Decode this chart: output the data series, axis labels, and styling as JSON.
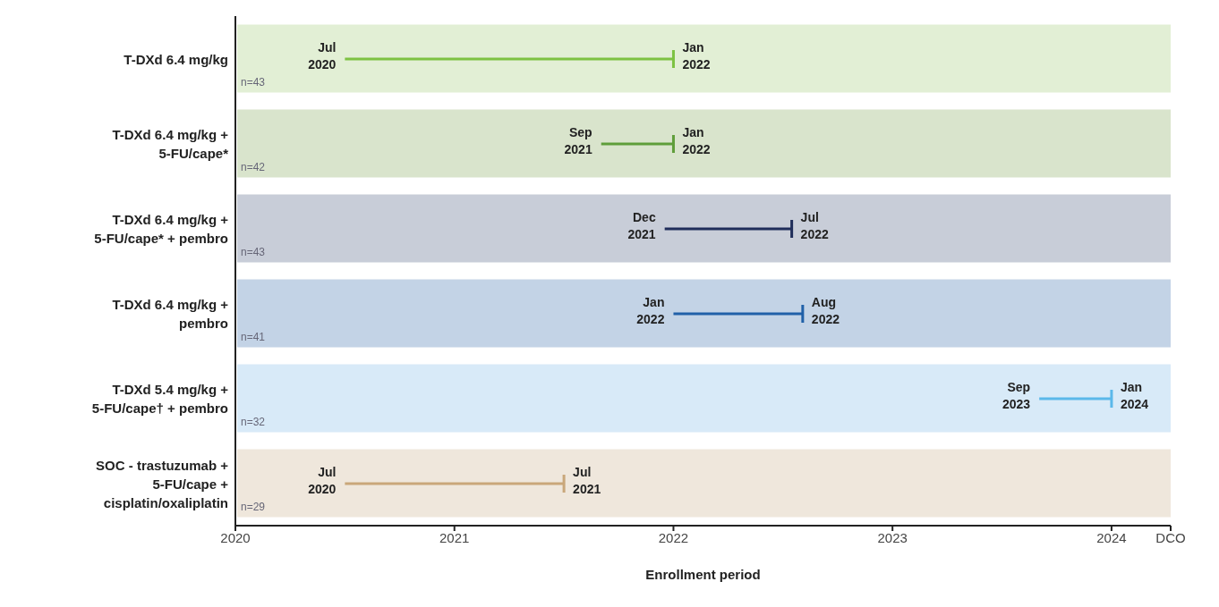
{
  "chart_data": {
    "type": "bar",
    "orientation": "horizontal",
    "xlabel": "Enrollment period",
    "categories": [
      "T-DXd 6.4 mg/kg",
      "T-DXd 6.4 mg/kg + 5-FU/cape*",
      "T-DXd 6.4 mg/kg + 5-FU/cape* + pembro",
      "T-DXd 6.4 mg/kg + pembro",
      "T-DXd 5.4 mg/kg + 5-FU/cape† + pembro",
      "SOC - trastuzumab + 5-FU/cape + cisplatin/oxaliplatin"
    ],
    "base": [
      2020.5,
      2021.67,
      2021.96,
      2022.0,
      2023.67,
      2020.5
    ],
    "values": [
      1.5,
      0.33,
      0.58,
      0.59,
      0.33,
      1.0
    ],
    "colors": [
      "#7dc242",
      "#5f9e3a",
      "#1f2d5a",
      "#2060a8",
      "#5bb8ea",
      "#c9a77a"
    ],
    "xlim": [
      2020,
      2024.27
    ],
    "xticks": [
      2020,
      2021,
      2022,
      2023,
      2024,
      {
        "value": 2024.27,
        "label": "DCO"
      }
    ],
    "bands": [
      {
        "axis": "y",
        "from": "T-DXd 6.4 mg/kg",
        "to": "T-DXd 6.4 mg/kg",
        "color": "#e2efd5"
      },
      {
        "axis": "y",
        "from": "T-DXd 6.4 mg/kg + 5-FU/cape*",
        "to": "T-DXd 6.4 mg/kg + 5-FU/cape*",
        "color": "#d9e4cc"
      },
      {
        "axis": "y",
        "from": "T-DXd 6.4 mg/kg + 5-FU/cape* + pembro",
        "to": "T-DXd 6.4 mg/kg + 5-FU/cape* + pembro",
        "color": "#c8cdd8"
      },
      {
        "axis": "y",
        "from": "T-DXd 6.4 mg/kg + pembro",
        "to": "T-DXd 6.4 mg/kg + pembro",
        "color": "#c3d3e6"
      },
      {
        "axis": "y",
        "from": "T-DXd 5.4 mg/kg + 5-FU/cape† + pembro",
        "to": "T-DXd 5.4 mg/kg + 5-FU/cape† + pembro",
        "color": "#d8eaf8"
      },
      {
        "axis": "y",
        "from": "SOC - trastuzumab + 5-FU/cape + cisplatin/oxaliplatin",
        "to": "SOC - trastuzumab + 5-FU/cape + cisplatin/oxaliplatin",
        "color": "#efe7dc"
      }
    ],
    "annotations": [
      {
        "text": "Jul 2020",
        "x": 2020.5,
        "y": "T-DXd 6.4 mg/kg"
      },
      {
        "text": "Jan 2022",
        "x": 2022.0,
        "y": "T-DXd 6.4 mg/kg"
      },
      {
        "text": "Sep 2021",
        "x": 2021.67,
        "y": "T-DXd 6.4 mg/kg + 5-FU/cape*"
      },
      {
        "text": "Jan 2022",
        "x": 2022.0,
        "y": "T-DXd 6.4 mg/kg + 5-FU/cape*"
      },
      {
        "text": "Dec 2021",
        "x": 2021.96,
        "y": "T-DXd 6.4 mg/kg + 5-FU/cape* + pembro"
      },
      {
        "text": "Jul 2022",
        "x": 2022.54,
        "y": "T-DXd 6.4 mg/kg + 5-FU/cape* + pembro"
      },
      {
        "text": "Jan 2022",
        "x": 2022.0,
        "y": "T-DXd 6.4 mg/kg + pembro"
      },
      {
        "text": "Aug 2022",
        "x": 2022.59,
        "y": "T-DXd 6.4 mg/kg + pembro"
      },
      {
        "text": "Sep 2023",
        "x": 2023.67,
        "y": "T-DXd 5.4 mg/kg + 5-FU/cape† + pembro"
      },
      {
        "text": "Jan 2024",
        "x": 2024.0,
        "y": "T-DXd 5.4 mg/kg + 5-FU/cape† + pembro"
      },
      {
        "text": "Jul 2020",
        "x": 2020.5,
        "y": "SOC - trastuzumab + 5-FU/cape + cisplatin/oxaliplatin"
      },
      {
        "text": "Jul 2021",
        "x": 2021.5,
        "y": "SOC - trastuzumab + 5-FU/cape + cisplatin/oxaliplatin"
      },
      {
        "text": "n=43",
        "x": 2020,
        "y": "T-DXd 6.4 mg/kg"
      },
      {
        "text": "n=42",
        "x": 2020,
        "y": "T-DXd 6.4 mg/kg + 5-FU/cape*"
      },
      {
        "text": "n=43",
        "x": 2020,
        "y": "T-DXd 6.4 mg/kg + 5-FU/cape* + pembro"
      },
      {
        "text": "n=41",
        "x": 2020,
        "y": "T-DXd 6.4 mg/kg + pembro"
      },
      {
        "text": "n=32",
        "x": 2020,
        "y": "T-DXd 5.4 mg/kg + 5-FU/cape† + pembro"
      },
      {
        "text": "n=29",
        "x": 2020,
        "y": "SOC - trastuzumab + 5-FU/cape + cisplatin/oxaliplatin"
      }
    ]
  }
}
